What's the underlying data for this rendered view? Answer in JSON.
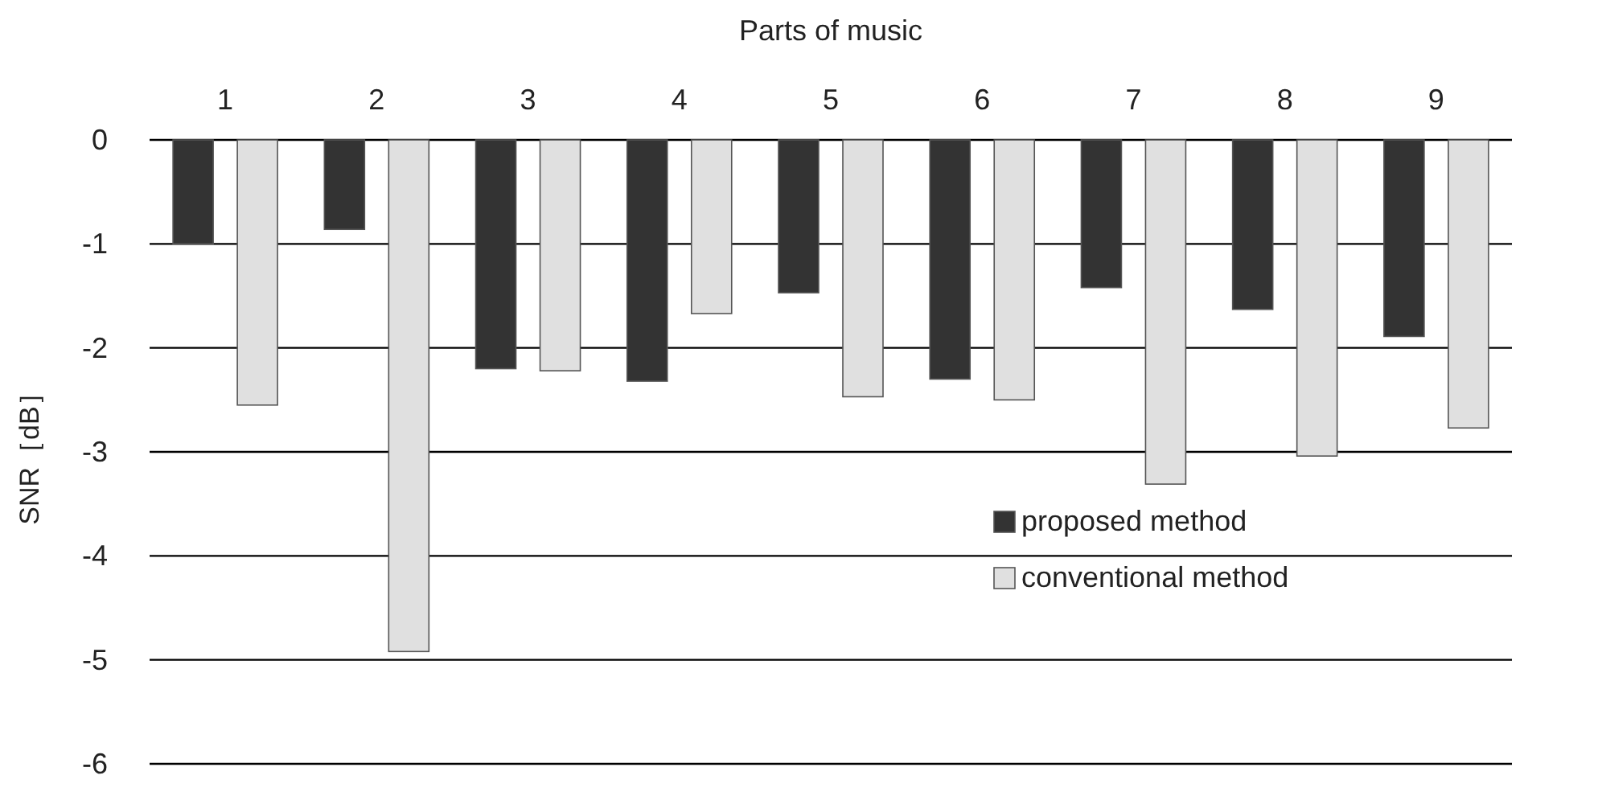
{
  "chart_data": {
    "type": "bar",
    "xlabel": "Parts of music",
    "ylabel": "SNR［dB］",
    "categories": [
      "1",
      "2",
      "3",
      "4",
      "5",
      "6",
      "7",
      "8",
      "9"
    ],
    "series": [
      {
        "name": "proposed method",
        "color": "#333333",
        "values": [
          -1.0,
          -0.86,
          -2.2,
          -2.32,
          -1.47,
          -2.3,
          -1.42,
          -1.63,
          -1.89
        ]
      },
      {
        "name": "conventional method",
        "color": "#e0e0e0",
        "values": [
          -2.55,
          -4.92,
          -2.22,
          -1.67,
          -2.47,
          -2.5,
          -3.31,
          -3.04,
          -2.77
        ]
      }
    ],
    "ylim": [
      -6,
      0
    ],
    "yticks": [
      -6,
      -5,
      -4,
      -3,
      -2,
      -1,
      0
    ],
    "grid": "y",
    "legend": "bottom right"
  }
}
